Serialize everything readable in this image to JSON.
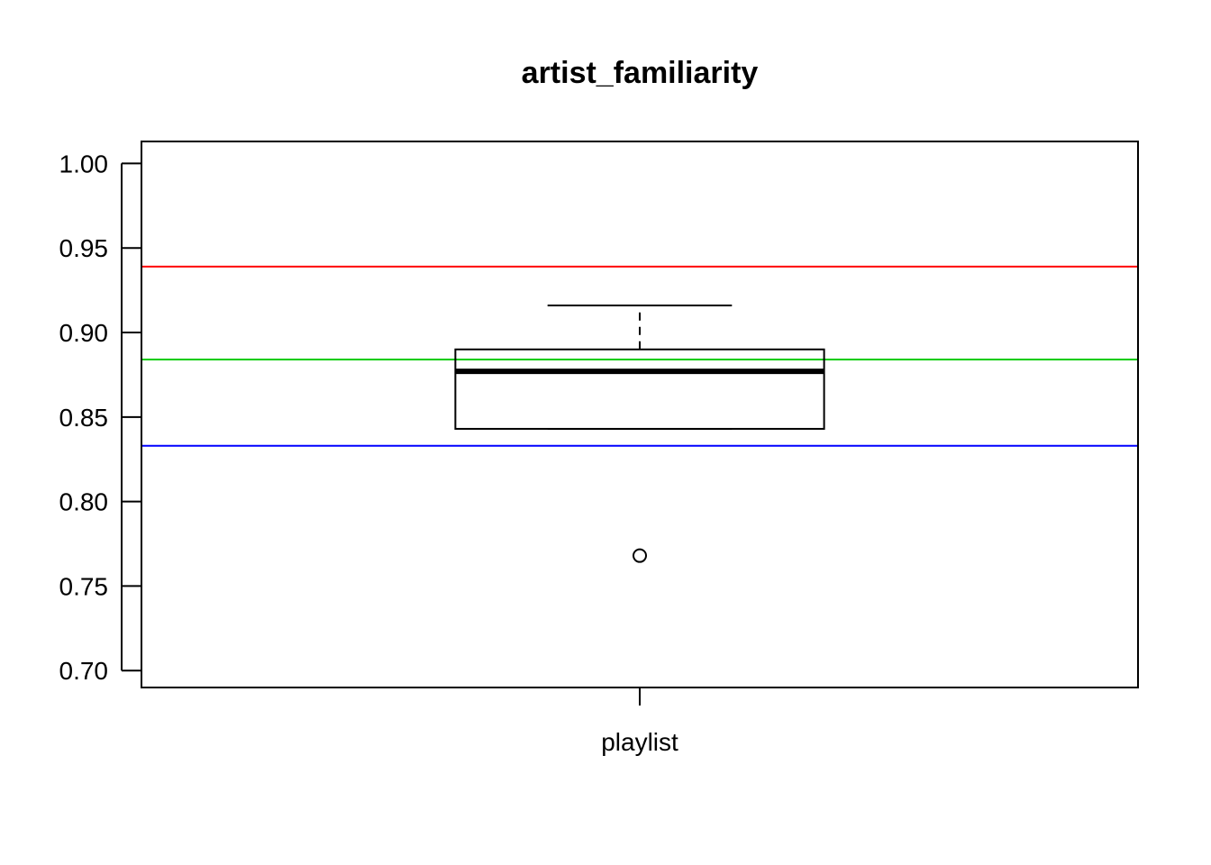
{
  "chart_data": {
    "type": "box",
    "title": "artist_familiarity",
    "xlabel": "",
    "ylabel": "",
    "categories": [
      "playlist"
    ],
    "ylim": [
      0.69,
      1.013
    ],
    "yticks": [
      0.7,
      0.75,
      0.8,
      0.85,
      0.9,
      0.95,
      1.0
    ],
    "ytick_labels": [
      "0.70",
      "0.75",
      "0.80",
      "0.85",
      "0.90",
      "0.95",
      "1.00"
    ],
    "boxes": [
      {
        "category": "playlist",
        "whisker_low": 0.843,
        "q1": 0.843,
        "median": 0.877,
        "q3": 0.89,
        "whisker_high": 0.916,
        "outliers": [
          0.768
        ]
      }
    ],
    "reference_lines": [
      {
        "value": 0.939,
        "color": "#ff0000"
      },
      {
        "value": 0.884,
        "color": "#00cc00"
      },
      {
        "value": 0.833,
        "color": "#0000ff"
      }
    ],
    "grid": false,
    "legend": "none"
  }
}
